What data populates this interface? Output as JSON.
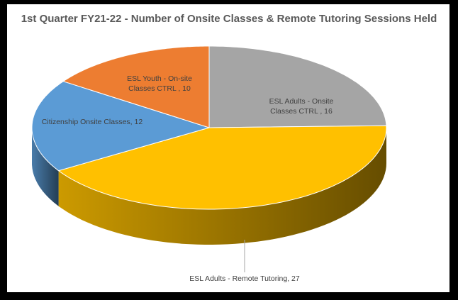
{
  "chart_data": {
    "type": "pie3d",
    "title": "1st Quarter FY21-22 - Number of Onsite Classes & Remote Tutoring Sessions Held",
    "categories": [
      "ESL Adults - Onsite Classes CTRL , 16",
      "ESL Adults - Remote Tutoring, 27",
      "Citizenship Onsite Classes, 12",
      "ESL Youth - On-site Classes CTRL , 10"
    ],
    "values": [
      16,
      27,
      12,
      10
    ],
    "colors": [
      "#a5a5a5",
      "#ffc000",
      "#5b9bd5",
      "#ed7d31"
    ]
  }
}
